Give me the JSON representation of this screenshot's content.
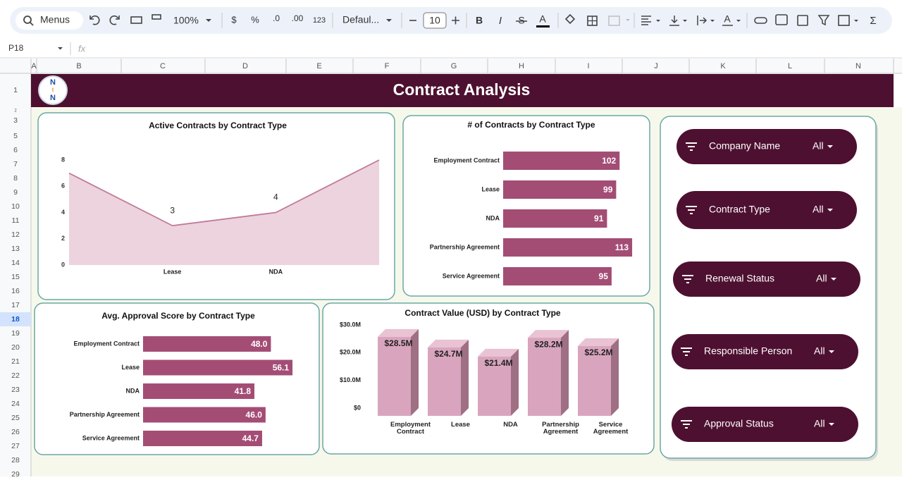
{
  "toolbar": {
    "search": "Menus",
    "zoom": "100%",
    "currency": "$",
    "percent": "%",
    "decrease_decimals": ".0",
    "increase_decimals": ".00",
    "more_formats": "123",
    "font": "Defaul...",
    "font_size": "10",
    "bold": "B",
    "italic": "I",
    "strikethrough": "S",
    "text_color": "A",
    "text_rotation": "A",
    "functions": "Σ"
  },
  "formula_bar": {
    "cell": "P18",
    "fx": "fx"
  },
  "columns": [
    "A",
    "B",
    "C",
    "D",
    "E",
    "F",
    "G",
    "H",
    "I",
    "J",
    "K",
    "L",
    "N"
  ],
  "rows": [
    "1",
    "2",
    "3",
    "5",
    "6",
    "7",
    "8",
    "9",
    "10",
    "11",
    "12",
    "13",
    "14",
    "15",
    "16",
    "17",
    "18",
    "19",
    "20",
    "21",
    "22",
    "23",
    "24",
    "25",
    "26",
    "27",
    "28",
    "29"
  ],
  "banner": {
    "logo": [
      "N",
      "t",
      "N"
    ],
    "title": "Contract Analysis"
  },
  "chart_data": [
    {
      "type": "area",
      "title": "Active Contracts by Contract Type",
      "categories": [
        null,
        "Lease",
        "NDA",
        null
      ],
      "values": [
        7,
        3,
        4,
        8
      ],
      "value_labels": [
        null,
        "3",
        "4",
        null
      ],
      "color": "#c07a9a",
      "ylim": [
        0,
        8
      ],
      "yticks": [
        0,
        2,
        4,
        6,
        8
      ]
    },
    {
      "type": "hbar",
      "title": "# of Contracts by Contract Type",
      "categories": [
        "Employment Contract",
        "Lease",
        "NDA",
        "Partnership Agreement",
        "Service Agreement"
      ],
      "values": [
        102,
        99,
        91,
        113,
        95
      ],
      "color": "#a34d75"
    },
    {
      "type": "hbar",
      "title": "Avg. Approval Score by Contract Type",
      "categories": [
        "Employment Contract",
        "Lease",
        "NDA",
        "Partnership Agreement",
        "Service Agreement"
      ],
      "values": [
        48.0,
        56.1,
        41.8,
        46.0,
        44.7
      ],
      "value_labels": [
        "48.0",
        "56.1",
        "41.8",
        "46.0",
        "44.7"
      ],
      "color": "#a34d75"
    },
    {
      "type": "bar3d",
      "title": "Contract Value (USD) by Contract Type",
      "categories": [
        "Employment Contract",
        "Lease",
        "NDA",
        "Partnership Agreement",
        "Service Agreement"
      ],
      "values": [
        28500000,
        24700000,
        21400000,
        28200000,
        25200000
      ],
      "value_labels": [
        "$28.5M",
        "$24.7M",
        "$21.4M",
        "$28.2M",
        "$25.2M"
      ],
      "color": "#d9a5be",
      "ylim": [
        0,
        30000000
      ],
      "yticks": [
        {
          "value": 0,
          "label": "$0"
        },
        {
          "value": 10000000,
          "label": "$10.0M"
        },
        {
          "value": 20000000,
          "label": "$20.0M"
        },
        {
          "value": 30000000,
          "label": "$30.0M"
        }
      ]
    }
  ],
  "slicers": [
    {
      "label": "Company Name",
      "value": "All"
    },
    {
      "label": "Contract Type",
      "value": "All"
    },
    {
      "label": "Renewal Status",
      "value": "All"
    },
    {
      "label": "Responsible Person",
      "value": "All"
    },
    {
      "label": "Approval Status",
      "value": "All"
    }
  ]
}
